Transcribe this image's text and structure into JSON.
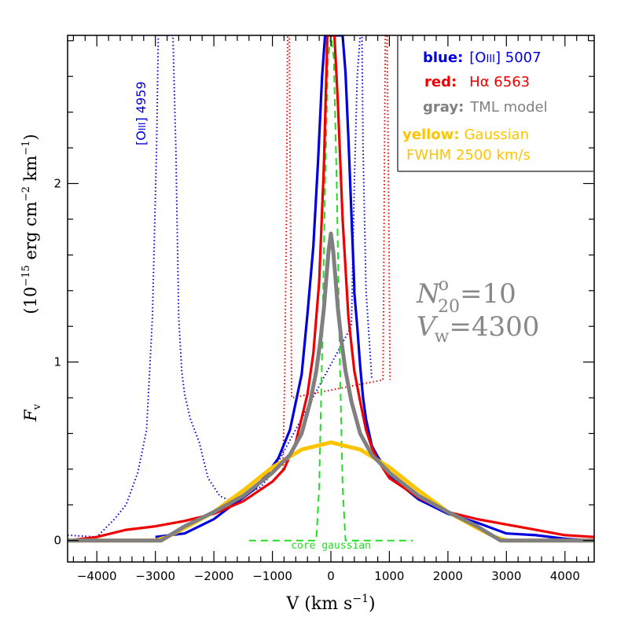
{
  "chart_data": {
    "type": "line",
    "xlabel": "V (km s",
    "xlabel_sup": "−1",
    "xlabel_close": ")",
    "ylabel_prefix": "F",
    "ylabel_sub": "v",
    "ylabel_units": "(10",
    "ylabel_units_sup": "−15",
    "ylabel_units_mid": " erg cm",
    "ylabel_units_sup2": "−2",
    "ylabel_units_end": " km",
    "ylabel_units_sup3": "−1",
    "ylabel_units_close": ")",
    "xlim": [
      -4500,
      4500
    ],
    "ylim": [
      -0.12,
      2.83
    ],
    "xticks": [
      -4000,
      -3000,
      -2000,
      -1000,
      0,
      1000,
      2000,
      3000,
      4000
    ],
    "xtick_labels": [
      "−4000",
      "−3000",
      "−2000",
      "−1000",
      "0",
      "1000",
      "2000",
      "3000",
      "4000"
    ],
    "yticks": [
      0,
      1,
      2
    ],
    "ytick_labels": [
      "0",
      "1",
      "2"
    ],
    "legend": {
      "placement": "top-right",
      "entries": [
        {
          "key": "blue:",
          "text": "[O",
          "text_sc": "III",
          "text_end": "] 5007",
          "color": "#0000dd"
        },
        {
          "key": "red:",
          "text": "Hα 6563",
          "color": "#ee0000"
        },
        {
          "key": "gray:",
          "text": "TML model",
          "color": "#808080"
        },
        {
          "key": "yellow:",
          "text": "Gaussian",
          "color": "#ffc400"
        },
        {
          "key": "",
          "text": "FWHM 2500 km/s",
          "color": "#ffc400"
        }
      ]
    },
    "annotations": {
      "n_label": "N",
      "n_sup": "o",
      "n_sub": "20",
      "n_value": "=10",
      "v_label": "V",
      "v_sub": "w",
      "v_value": "=4300",
      "core_label": "core gaussian",
      "o3_4959_label_a": "[O",
      "o3_4959_label_sc": "III",
      "o3_4959_label_b": "] 4959"
    },
    "colors": {
      "blue": "#0000dd",
      "red": "#ee0000",
      "gray": "#808080",
      "yellow": "#ffc400",
      "green": "#22dd22"
    },
    "series": [
      {
        "name": "[OIII] 5007",
        "color": "#0000dd",
        "style": "solid",
        "x": [
          -3000,
          -2500,
          -2000,
          -1800,
          -1500,
          -1300,
          -1100,
          -900,
          -700,
          -500,
          -400,
          -300,
          -220,
          -150,
          -100,
          -50,
          0,
          50,
          100,
          150,
          200,
          250,
          300,
          350,
          400,
          400,
          450,
          500,
          550,
          600,
          700,
          800,
          1000,
          1200,
          1500,
          2000,
          2500,
          3000,
          3500,
          4000,
          4500
        ],
        "y": [
          0.02,
          0.04,
          0.12,
          0.17,
          0.24,
          0.29,
          0.37,
          0.46,
          0.62,
          0.93,
          1.27,
          1.65,
          2.12,
          2.6,
          2.83,
          2.83,
          2.83,
          2.83,
          2.83,
          2.83,
          2.83,
          2.62,
          2.25,
          1.83,
          1.42,
          1.39,
          1.2,
          0.98,
          0.8,
          0.68,
          0.53,
          0.47,
          0.37,
          0.31,
          0.23,
          0.15,
          0.1,
          0.04,
          0.03,
          0.01,
          0.0
        ]
      },
      {
        "name": "[OIII] 4959 (dotted)",
        "color": "#0000dd",
        "style": "dotted",
        "x": [
          -4500,
          -4000,
          -3700,
          -3500,
          -3300,
          -3150,
          -3050,
          -2980,
          -2950,
          -2700,
          -2650,
          -2600,
          -2550,
          -2500,
          -2400,
          -2250,
          -2100,
          -1900,
          -1700,
          -1500,
          -1200,
          -1000,
          350,
          400,
          450,
          500,
          530,
          550,
          600,
          700
        ],
        "y": [
          0.03,
          0.02,
          0.12,
          0.2,
          0.38,
          0.62,
          1.25,
          2.2,
          2.83,
          2.83,
          2.2,
          1.25,
          0.95,
          0.82,
          0.68,
          0.55,
          0.35,
          0.25,
          0.22,
          0.25,
          0.3,
          0.38,
          1.2,
          2.0,
          2.6,
          2.83,
          2.83,
          2.2,
          1.4,
          0.9
        ]
      },
      {
        "name": "Hα 6563",
        "color": "#ee0000",
        "style": "solid",
        "x": [
          -4500,
          -4000,
          -3500,
          -3000,
          -2500,
          -2000,
          -1500,
          -1000,
          -800,
          -600,
          -400,
          -300,
          -200,
          -120,
          -60,
          0,
          60,
          120,
          200,
          300,
          400,
          500,
          600,
          700,
          800,
          900,
          1000,
          1500,
          2000,
          2500,
          3000,
          3500,
          4000,
          4500
        ],
        "y": [
          0.0,
          0.02,
          0.06,
          0.08,
          0.11,
          0.15,
          0.22,
          0.33,
          0.4,
          0.55,
          0.82,
          1.05,
          1.45,
          2.1,
          2.83,
          2.83,
          2.83,
          2.45,
          1.8,
          1.25,
          0.95,
          0.78,
          0.62,
          0.52,
          0.45,
          0.4,
          0.35,
          0.24,
          0.16,
          0.12,
          0.09,
          0.06,
          0.03,
          0.02
        ]
      },
      {
        "name": "Hα satellite (dotted)",
        "color": "#ee0000",
        "style": "dotted",
        "x": [
          -820,
          -790,
          -760,
          -740,
          -710,
          -690,
          -670,
          890,
          910,
          930,
          960,
          990,
          1010
        ],
        "y": [
          0.4,
          0.9,
          1.8,
          2.83,
          2.83,
          1.8,
          0.8,
          0.9,
          1.8,
          2.83,
          2.83,
          1.8,
          0.9
        ]
      },
      {
        "name": "TML model",
        "color": "#808080",
        "style": "solid",
        "x": [
          -4500,
          -2900,
          -2700,
          -2500,
          -2000,
          -1500,
          -1000,
          -700,
          -500,
          -350,
          -250,
          -180,
          -120,
          -80,
          -40,
          0,
          40,
          80,
          120,
          180,
          250,
          350,
          500,
          700,
          1000,
          1500,
          2000,
          2500,
          2700,
          2900,
          4500
        ],
        "y": [
          0.0,
          0.0,
          0.04,
          0.08,
          0.16,
          0.25,
          0.38,
          0.48,
          0.6,
          0.78,
          0.95,
          1.12,
          1.3,
          1.46,
          1.62,
          1.72,
          1.62,
          1.46,
          1.3,
          1.12,
          0.95,
          0.78,
          0.6,
          0.48,
          0.38,
          0.25,
          0.16,
          0.08,
          0.04,
          0.0,
          0.0
        ]
      },
      {
        "name": "Gaussian FWHM 2500 km/s",
        "color": "#ffc400",
        "style": "solid",
        "x": [
          -4500,
          -3000,
          -2800,
          -2500,
          -2000,
          -1500,
          -1000,
          -500,
          0,
          500,
          1000,
          1500,
          2000,
          2500,
          2800,
          3000,
          4500
        ],
        "y": [
          0.0,
          0.0,
          0.02,
          0.07,
          0.16,
          0.28,
          0.41,
          0.51,
          0.55,
          0.51,
          0.41,
          0.28,
          0.16,
          0.07,
          0.02,
          0.0,
          0.0
        ]
      },
      {
        "name": "core gaussian",
        "color": "#22dd22",
        "style": "dashed",
        "x": [
          -1400,
          -250,
          -200,
          -150,
          -100,
          -50,
          0,
          50,
          100,
          150,
          200,
          250,
          1400
        ],
        "y": [
          0.0,
          0.0,
          0.3,
          1.05,
          2.0,
          2.7,
          2.83,
          2.7,
          2.0,
          1.05,
          0.3,
          0.0,
          0.0
        ]
      }
    ]
  }
}
